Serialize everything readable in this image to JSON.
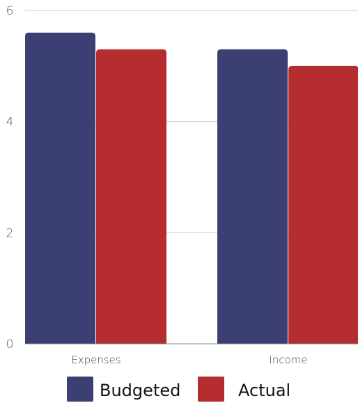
{
  "chart_data": {
    "type": "bar",
    "title": "",
    "xlabel": "",
    "ylabel": "",
    "categories": [
      "Expenses",
      "Income"
    ],
    "series": [
      {
        "name": "Budgeted",
        "values": [
          5.6,
          5.3
        ],
        "color": "#3b3f74"
      },
      {
        "name": "Actual",
        "values": [
          5.3,
          5.0
        ],
        "color": "#b52d2f"
      }
    ],
    "ylim": [
      0,
      6
    ],
    "yticks": [
      "0",
      "2",
      "4",
      "6"
    ],
    "grid": true,
    "legend_position": "bottom"
  },
  "colors": {
    "grid": "#cccccc",
    "axis": "#888888"
  }
}
